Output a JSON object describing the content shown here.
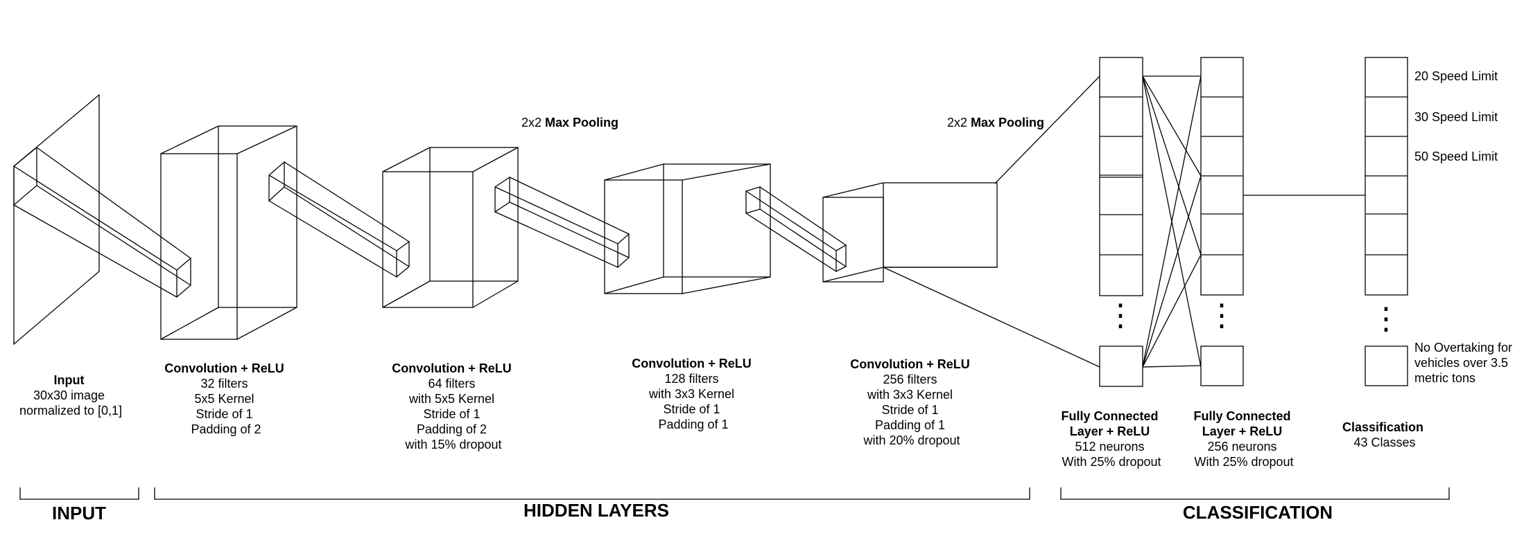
{
  "layers": {
    "input": {
      "title": "Input",
      "lines": [
        "30x30 image",
        "normalized to [0,1]"
      ]
    },
    "conv1": {
      "title": "Convolution + ReLU",
      "lines": [
        "32 filters",
        "5x5 Kernel",
        "Stride of 1",
        "Padding of 2"
      ]
    },
    "conv2": {
      "title": "Convolution + ReLU",
      "lines": [
        "64 filters",
        "with 5x5 Kernel",
        "Stride of 1",
        "Padding of 2",
        "with 15% dropout"
      ]
    },
    "conv3": {
      "title": "Convolution + ReLU",
      "lines": [
        "128 filters",
        "with 3x3 Kernel",
        "Stride of 1",
        "Padding of 1"
      ]
    },
    "conv4": {
      "title": "Convolution + ReLU",
      "lines": [
        "256 filters",
        "with 3x3 Kernel",
        "Stride of 1",
        "Padding of 1",
        "with 20% dropout"
      ]
    },
    "fc1": {
      "title_lines": [
        "Fully Connected",
        "Layer + ReLU"
      ],
      "lines": [
        "512 neurons",
        "With 25% dropout"
      ]
    },
    "fc2": {
      "title_lines": [
        "Fully Connected",
        "Layer + ReLU"
      ],
      "lines": [
        "256 neurons",
        "With 25% dropout"
      ]
    },
    "classification": {
      "title": "Classification",
      "lines": [
        "43 Classes"
      ]
    }
  },
  "pooling": {
    "first": {
      "prefix": "2x2 ",
      "bold": "Max Pooling"
    },
    "second": {
      "prefix": "2x2 ",
      "bold": "Max Pooling"
    }
  },
  "class_labels": [
    "20 Speed Limit",
    "30 Speed Limit",
    "50 Speed Limit"
  ],
  "last_class_label": [
    "No Overtaking for",
    "vehicles over 3.5",
    "metric tons"
  ],
  "ellipsis": "⋮",
  "sections": {
    "input": "INPUT",
    "hidden": "HIDDEN LAYERS",
    "classification": "CLASSIFICATION"
  }
}
